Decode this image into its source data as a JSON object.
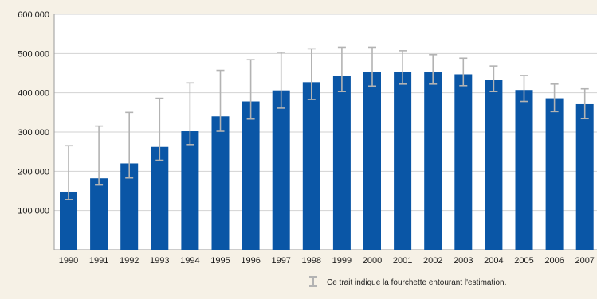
{
  "chart_data": {
    "type": "bar",
    "title": "",
    "xlabel": "",
    "ylabel": "",
    "ylim": [
      0,
      600000
    ],
    "yticks": [
      100000,
      200000,
      300000,
      400000,
      500000,
      600000
    ],
    "ytick_labels": [
      "100 000",
      "200 000",
      "300 000",
      "400 000",
      "500 000",
      "600 000"
    ],
    "grid": true,
    "categories": [
      "1990",
      "1991",
      "1992",
      "1993",
      "1994",
      "1995",
      "1996",
      "1997",
      "1998",
      "1999",
      "2000",
      "2001",
      "2002",
      "2003",
      "2004",
      "2005",
      "2006",
      "2007"
    ],
    "series": [
      {
        "values": [
          148000,
          182000,
          220000,
          262000,
          302000,
          340000,
          378000,
          406000,
          427000,
          443000,
          452000,
          453000,
          452000,
          447000,
          433000,
          407000,
          386000,
          371000
        ],
        "error_low": [
          128000,
          165000,
          183000,
          228000,
          268000,
          302000,
          333000,
          361000,
          383000,
          403000,
          417000,
          422000,
          422000,
          418000,
          403000,
          378000,
          352000,
          334000
        ],
        "error_high": [
          265000,
          315000,
          350000,
          386000,
          425000,
          457000,
          484000,
          503000,
          512000,
          516000,
          516000,
          507000,
          497000,
          488000,
          468000,
          444000,
          422000,
          410000
        ]
      }
    ],
    "colors": {
      "bar": "#0a56a6",
      "error": "#b3b3b3",
      "grid": "#d2d2d2",
      "plot_bg": "#ffffff",
      "page_bg": "#f6f1e6",
      "text": "#1a1a1a"
    },
    "legend": {
      "position": "bottom-right",
      "note": "Ce trait indique la fourchette entourant l'estimation."
    }
  }
}
